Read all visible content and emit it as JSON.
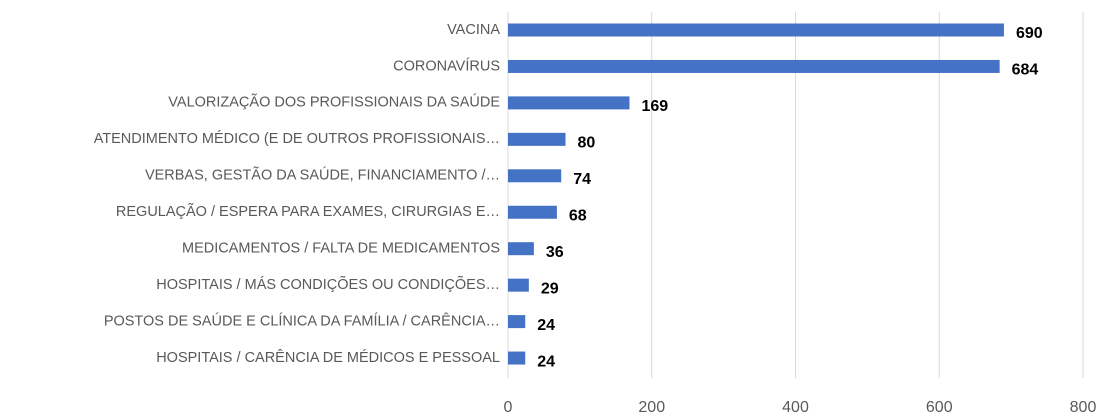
{
  "chart_data": {
    "type": "bar",
    "orientation": "horizontal",
    "categories": [
      "VACINA",
      "CORONAVÍRUS",
      "VALORIZAÇÃO DOS PROFISSIONAIS DA SAÚDE",
      "ATENDIMENTO MÉDICO (E DE OUTROS PROFISSIONAIS…",
      "VERBAS, GESTÃO DA SAÚDE, FINANCIAMENTO /…",
      "REGULAÇÃO / ESPERA PARA EXAMES, CIRURGIAS E…",
      "MEDICAMENTOS / FALTA DE MEDICAMENTOS",
      "HOSPITAIS / MÁS CONDIÇÕES OU CONDIÇÕES…",
      "POSTOS DE SAÚDE E CLÍNICA DA FAMÍLIA / CARÊNCIA…",
      "HOSPITAIS / CARÊNCIA DE MÉDICOS E PESSOAL"
    ],
    "values": [
      690,
      684,
      169,
      80,
      74,
      68,
      36,
      29,
      24,
      24
    ],
    "color": "#4472c4",
    "xlim": [
      0,
      800
    ],
    "xticks": [
      0,
      200,
      400,
      600,
      800
    ],
    "grid": true
  }
}
